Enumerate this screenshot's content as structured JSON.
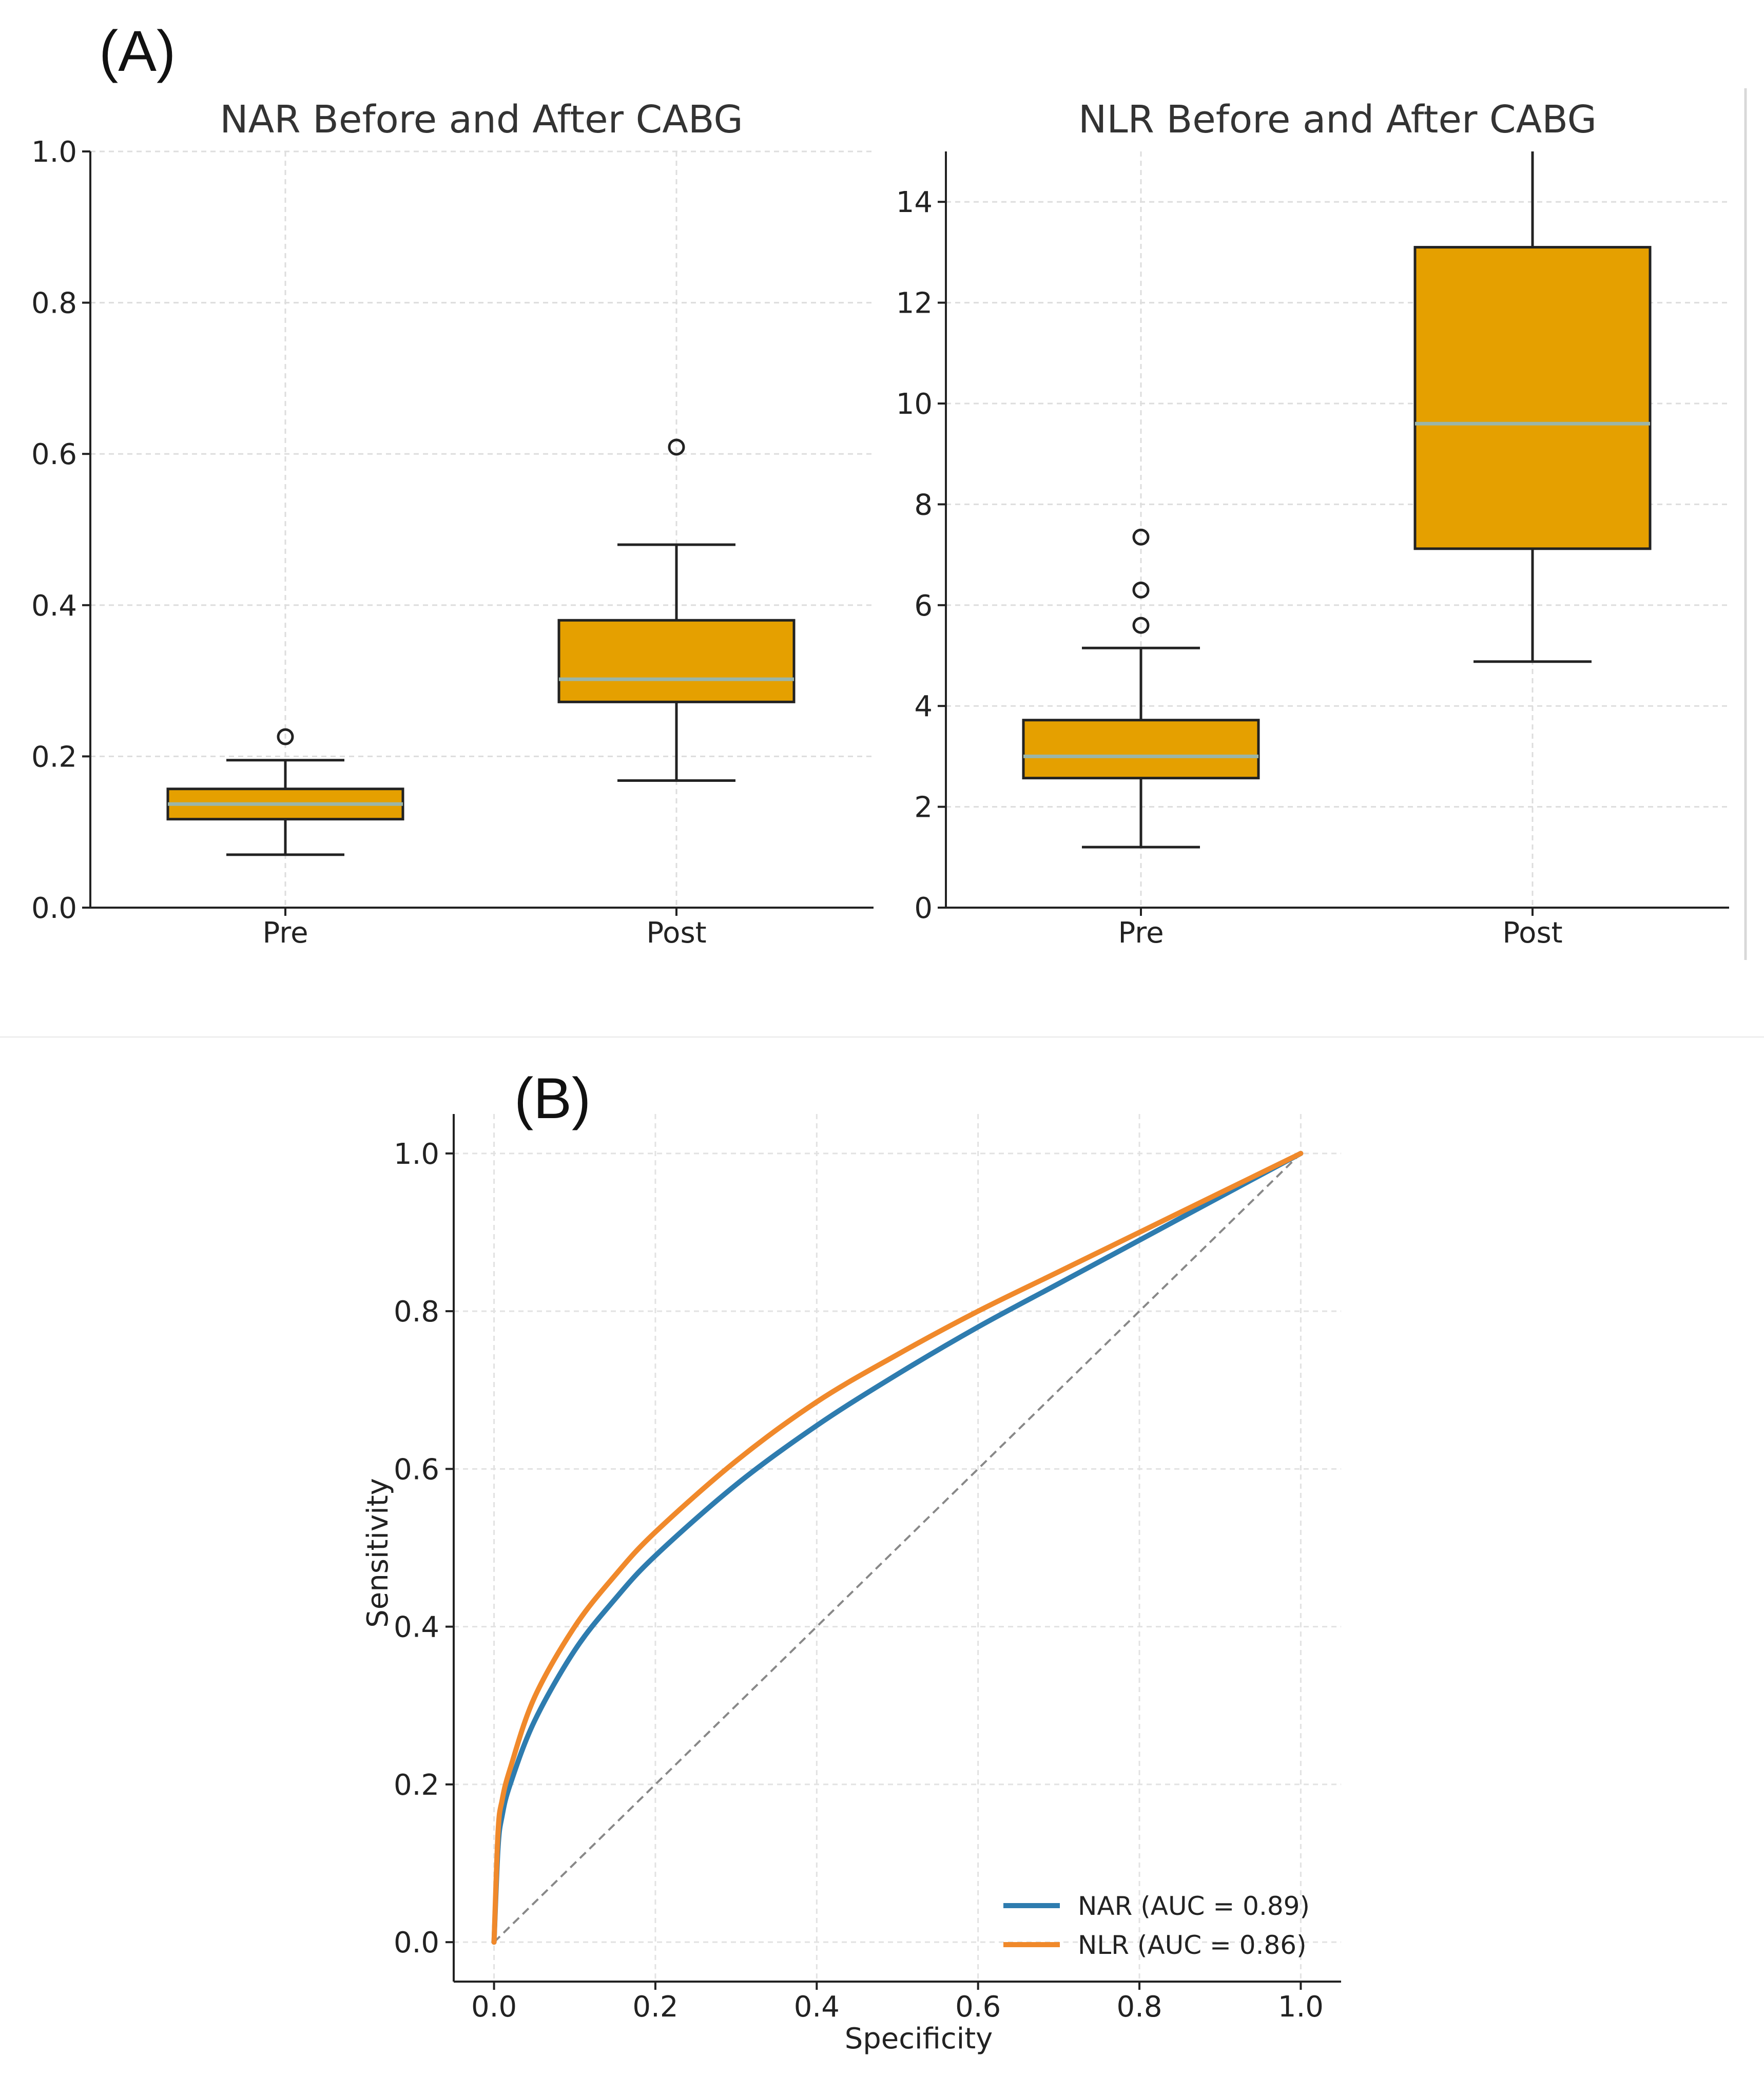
{
  "panel_a_label": "(A)",
  "panel_b_label": "(B)",
  "chart_data": [
    {
      "type": "box",
      "title": "NAR Before and After CABG",
      "categories": [
        "Pre",
        "Post"
      ],
      "ylim": [
        0.0,
        1.0
      ],
      "yticks": [
        "0.0",
        "0.2",
        "0.4",
        "0.6",
        "0.8",
        "1.0"
      ],
      "ytick_values": [
        0.0,
        0.2,
        0.4,
        0.6,
        0.8,
        1.0
      ],
      "grid": true,
      "boxes": [
        {
          "name": "Pre",
          "whisker_low": 0.07,
          "q1": 0.117,
          "median": 0.137,
          "q3": 0.157,
          "whisker_high": 0.195,
          "outliers": [
            0.226
          ]
        },
        {
          "name": "Post",
          "whisker_low": 0.168,
          "q1": 0.272,
          "median": 0.302,
          "q3": 0.38,
          "whisker_high": 0.48,
          "outliers": [
            0.609
          ]
        }
      ],
      "box_color": "#E5A000",
      "median_color": "#9BB5A8"
    },
    {
      "type": "box",
      "title": "NLR Before and After CABG",
      "categories": [
        "Pre",
        "Post"
      ],
      "ylim": [
        0,
        15
      ],
      "yticks": [
        "0",
        "2",
        "4",
        "6",
        "8",
        "10",
        "12",
        "14"
      ],
      "ytick_values": [
        0,
        2,
        4,
        6,
        8,
        10,
        12,
        14
      ],
      "grid": true,
      "boxes": [
        {
          "name": "Pre",
          "whisker_low": 1.2,
          "q1": 2.57,
          "median": 3.0,
          "q3": 3.72,
          "whisker_high": 5.15,
          "outliers": [
            5.6,
            6.3,
            7.35
          ]
        },
        {
          "name": "Post",
          "whisker_low": 4.88,
          "q1": 7.12,
          "median": 9.6,
          "q3": 13.1,
          "whisker_high": 15.0,
          "outliers": []
        }
      ],
      "box_color": "#E5A000",
      "median_color": "#9BB5A8"
    },
    {
      "type": "line",
      "title": "",
      "xlabel": "Specificity",
      "ylabel": "Sensitivity",
      "xlim": [
        -0.05,
        1.05
      ],
      "ylim": [
        -0.05,
        1.05
      ],
      "xticks": [
        "0.0",
        "0.2",
        "0.4",
        "0.6",
        "0.8",
        "1.0"
      ],
      "xtick_values": [
        0.0,
        0.2,
        0.4,
        0.6,
        0.8,
        1.0
      ],
      "yticks": [
        "0.0",
        "0.2",
        "0.4",
        "0.6",
        "0.8",
        "1.0"
      ],
      "ytick_values": [
        0.0,
        0.2,
        0.4,
        0.6,
        0.8,
        1.0
      ],
      "grid": true,
      "legend_position": "bottom-right",
      "series": [
        {
          "name": "NAR (AUC = 0.89)",
          "color": "#2E7CAF",
          "x": [
            0,
            0.005,
            0.01,
            0.02,
            0.05,
            0.1,
            0.15,
            0.2,
            0.3,
            0.4,
            0.5,
            0.6,
            0.7,
            0.8,
            0.9,
            1.0
          ],
          "y": [
            0,
            0.12,
            0.16,
            0.2,
            0.28,
            0.37,
            0.435,
            0.49,
            0.58,
            0.655,
            0.72,
            0.78,
            0.835,
            0.89,
            0.945,
            1.0
          ]
        },
        {
          "name": "NLR (AUC = 0.86)",
          "color": "#F0892B",
          "x": [
            0,
            0.005,
            0.01,
            0.02,
            0.05,
            0.1,
            0.15,
            0.2,
            0.3,
            0.4,
            0.5,
            0.6,
            0.7,
            0.8,
            0.9,
            1.0
          ],
          "y": [
            0,
            0.14,
            0.18,
            0.22,
            0.31,
            0.4,
            0.465,
            0.52,
            0.61,
            0.685,
            0.745,
            0.8,
            0.85,
            0.9,
            0.95,
            1.0
          ]
        }
      ],
      "reference_line": {
        "x": [
          0,
          1
        ],
        "y": [
          0,
          1
        ],
        "color": "#888888",
        "style": "dashed"
      }
    }
  ]
}
